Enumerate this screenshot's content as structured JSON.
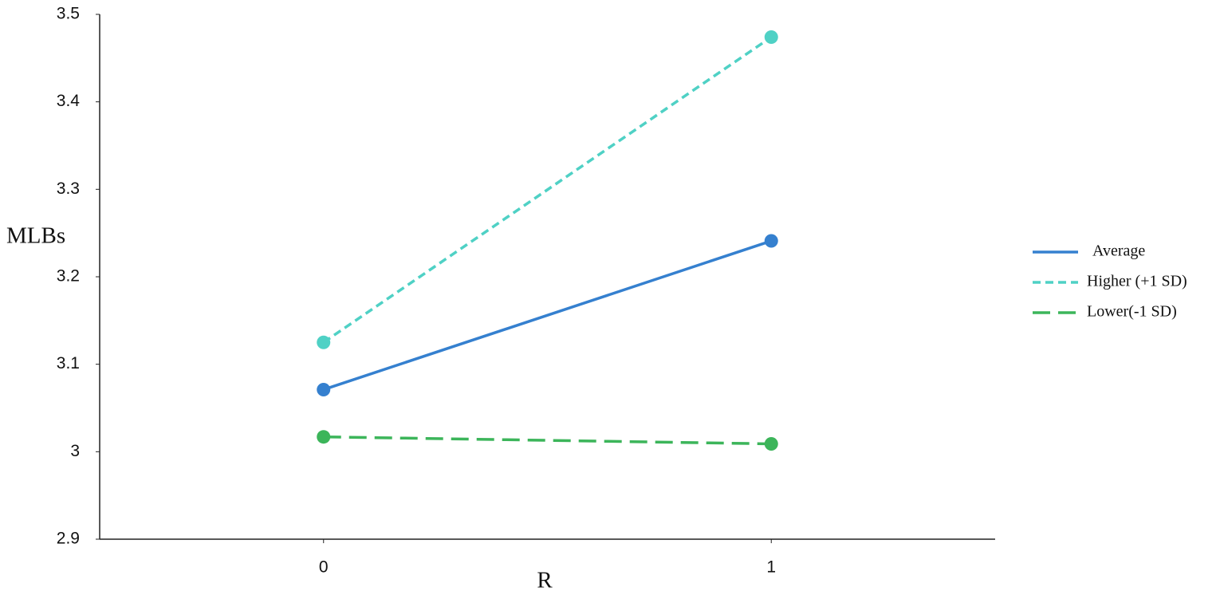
{
  "chart_data": {
    "type": "line",
    "x": [
      0,
      1
    ],
    "xlabel": "R",
    "ylabel": "MLBs",
    "xlim": [
      -0.5,
      1.5
    ],
    "xticks": [
      0,
      1
    ],
    "ylim": [
      2.9,
      3.5
    ],
    "yticks": [
      2.9,
      3,
      3.1,
      3.2,
      3.3,
      3.4,
      3.5
    ],
    "grid": false,
    "legend": "right",
    "series": [
      {
        "name": "Average",
        "color": "#3580cf",
        "linestyle": "solid",
        "values": [
          3.071,
          3.241
        ]
      },
      {
        "name": "Higher (+1 SD)",
        "color": "#4fd1c5",
        "linestyle": "dashed",
        "values": [
          3.125,
          3.474
        ]
      },
      {
        "name": "Lower(-1 SD)",
        "color": "#3cb55a",
        "linestyle": "longdash",
        "values": [
          3.017,
          3.009
        ]
      }
    ]
  }
}
